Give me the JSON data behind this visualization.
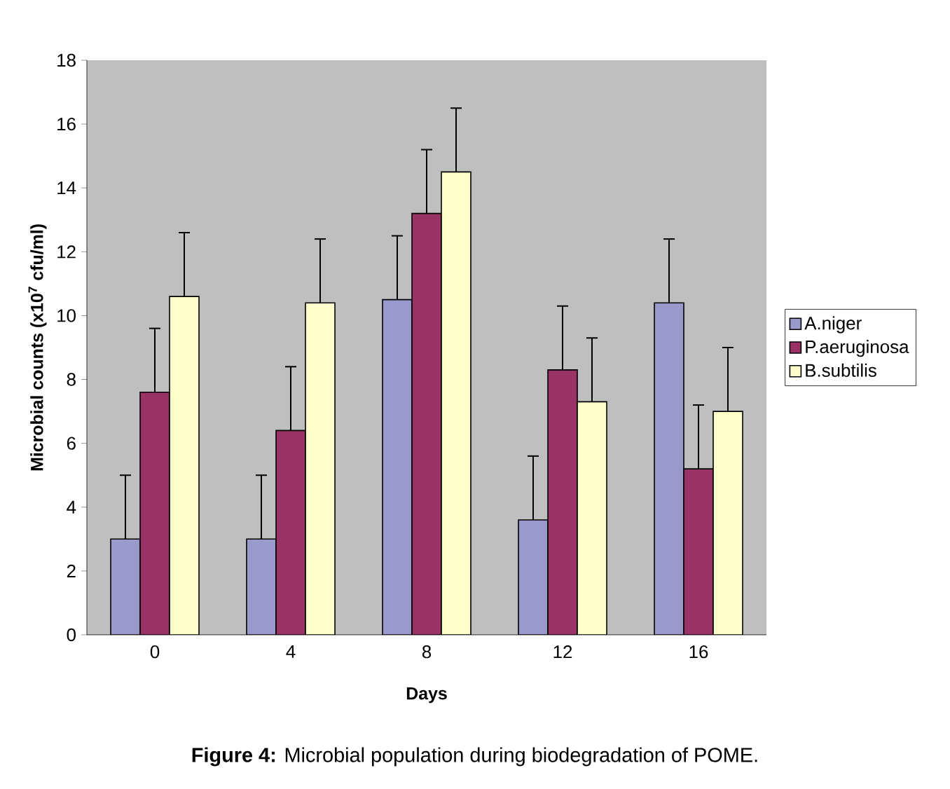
{
  "chart_data": {
    "type": "bar",
    "xlabel": "Days",
    "ylabel": "Microbial counts (x10$^{7}$ cfu/ml)",
    "categories": [
      "0",
      "4",
      "8",
      "12",
      "16"
    ],
    "series": [
      {
        "name": "A.niger",
        "color": "#9999cc",
        "values": [
          3.0,
          3.0,
          10.5,
          3.6,
          10.4
        ],
        "errors": [
          [
            3.0,
            5.0
          ],
          [
            3.0,
            5.0
          ],
          [
            10.5,
            12.5
          ],
          [
            3.6,
            5.6
          ],
          [
            10.4,
            12.4
          ]
        ]
      },
      {
        "name": "P.aeruginosa",
        "color": "#993366",
        "values": [
          7.6,
          6.4,
          13.2,
          8.3,
          5.2
        ],
        "errors": [
          [
            7.6,
            9.6
          ],
          [
            6.4,
            8.4
          ],
          [
            13.2,
            15.2
          ],
          [
            8.3,
            10.3
          ],
          [
            5.2,
            7.2
          ]
        ]
      },
      {
        "name": "B.subtilis",
        "color": "#ffffcc",
        "values": [
          10.6,
          10.4,
          14.5,
          7.3,
          7.0
        ],
        "errors": [
          [
            10.6,
            12.6
          ],
          [
            10.4,
            12.4
          ],
          [
            14.5,
            16.5
          ],
          [
            7.3,
            9.3
          ],
          [
            7.0,
            9.0
          ]
        ]
      }
    ],
    "ylim": [
      0,
      18
    ],
    "yticks": [
      0,
      2,
      4,
      6,
      8,
      10,
      12,
      14,
      16,
      18
    ],
    "grid": false,
    "legend": "right",
    "annotations": [
      "**Figure 4:** Microbial population during biodegradation of POME."
    ]
  }
}
